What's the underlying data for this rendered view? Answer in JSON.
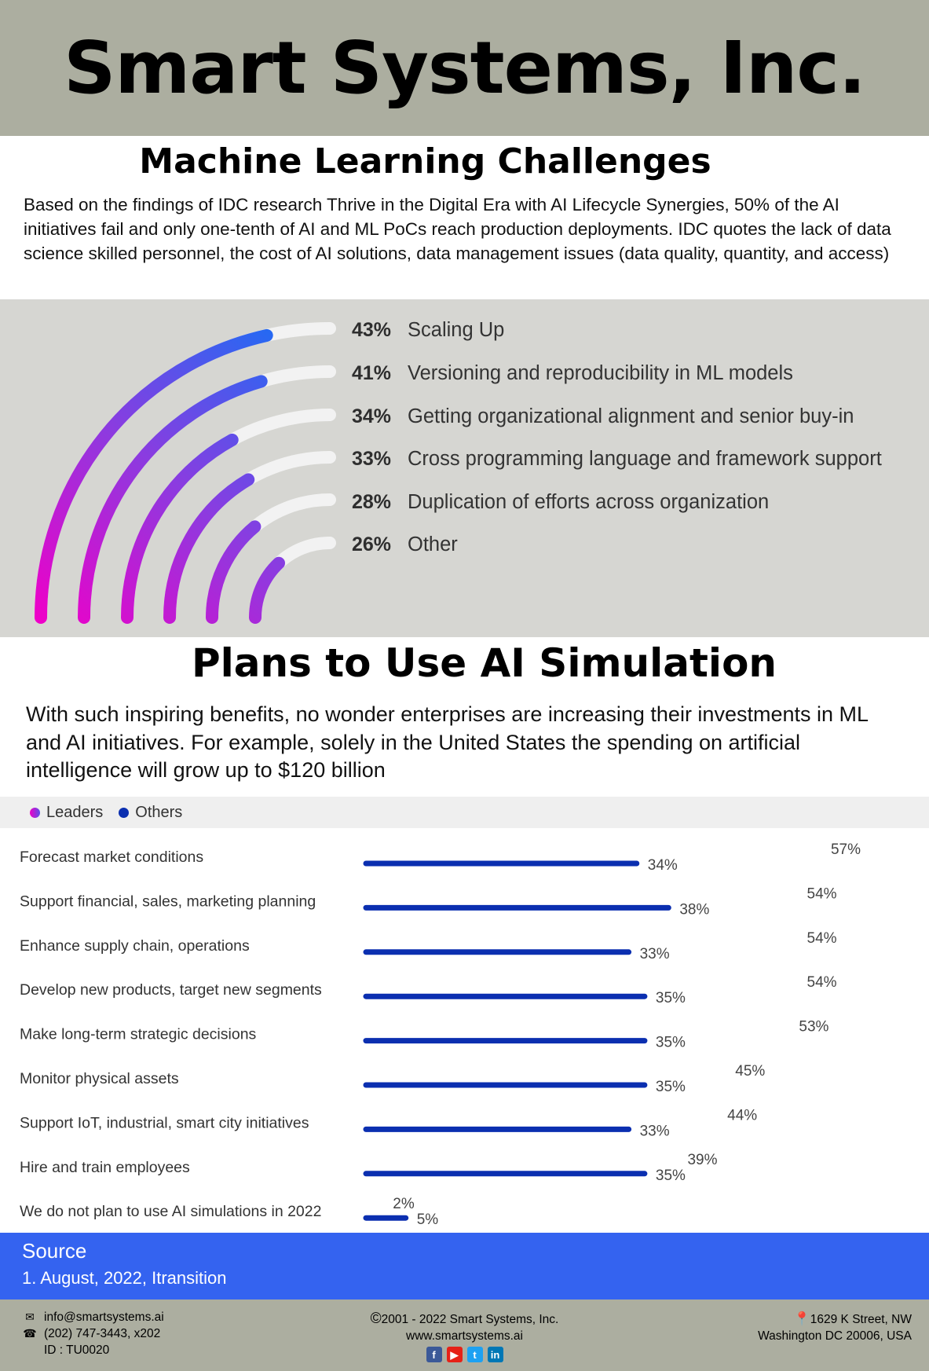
{
  "header": {
    "title": "Smart Systems, Inc."
  },
  "section1": {
    "title": "Machine Learning Challenges",
    "text": "Based on the findings of IDC research Thrive in the Digital Era with AI Lifecycle Synergies, 50% of the AI initiatives fail and only one-tenth of AI and ML PoCs reach production deployments. IDC quotes the lack of data science skilled personnel, the cost of AI solutions, data management issues (data quality, quantity, and access)"
  },
  "section2": {
    "title": "Plans to Use AI Simulation",
    "text": "With such inspiring benefits, no wonder enterprises are increasing their investments in ML and AI initiatives. For example, solely in the United States  the spending on artificial intelligence will grow up to $120 billion"
  },
  "colors": {
    "pink": "#ee00c8",
    "purple": "#8a3ce0",
    "blue": "#1a6ef5",
    "navy": "#0b2fb0",
    "track": "#f2f2f2",
    "header_bg": "#acaea0",
    "source_bg": "#3463f0"
  },
  "chart_data": [
    {
      "type": "radial-bar",
      "categories": [
        "Scaling Up",
        "Versioning and reproducibility in ML models",
        "Getting organizational alignment and senior buy-in",
        "Cross programming language and framework support",
        "Duplication of efforts across organization",
        "Other"
      ],
      "values": [
        43,
        41,
        34,
        33,
        28,
        26
      ],
      "labels": [
        "43%",
        "41%",
        "34%",
        "33%",
        "28%",
        "26%"
      ]
    },
    {
      "type": "bar",
      "categories": [
        "Forecast market conditions",
        "Support financial, sales, marketing planning",
        "Enhance supply chain, operations",
        "Develop new products, target new segments",
        "Make long-term strategic decisions",
        "Monitor physical assets",
        "Support IoT, industrial, smart city initiatives",
        "Hire and train employees",
        "We do not plan to use AI simulations in 2022"
      ],
      "series": [
        {
          "name": "Leaders",
          "values": [
            57,
            54,
            54,
            54,
            53,
            45,
            44,
            39,
            2
          ]
        },
        {
          "name": "Others",
          "values": [
            34,
            38,
            33,
            35,
            35,
            35,
            33,
            35,
            5
          ]
        }
      ],
      "legend": "top-left"
    }
  ],
  "source": {
    "title": "Source",
    "value": "1. August, 2022, Itransition"
  },
  "footer": {
    "email": "info@smartsystems.ai",
    "phone": "(202) 747-3443, x202",
    "id": "ID : TU0020",
    "copyright": "2001 - 2022 Smart Systems, Inc.",
    "website": "www.smartsystems.ai",
    "address1": "1629 K Street, NW",
    "address2": "Washington DC 20006, USA",
    "icons": [
      "envelope-icon",
      "phone-icon",
      "copyright-icon",
      "location-pin-icon",
      "facebook-icon",
      "youtube-icon",
      "twitter-icon",
      "linkedin-icon"
    ]
  }
}
